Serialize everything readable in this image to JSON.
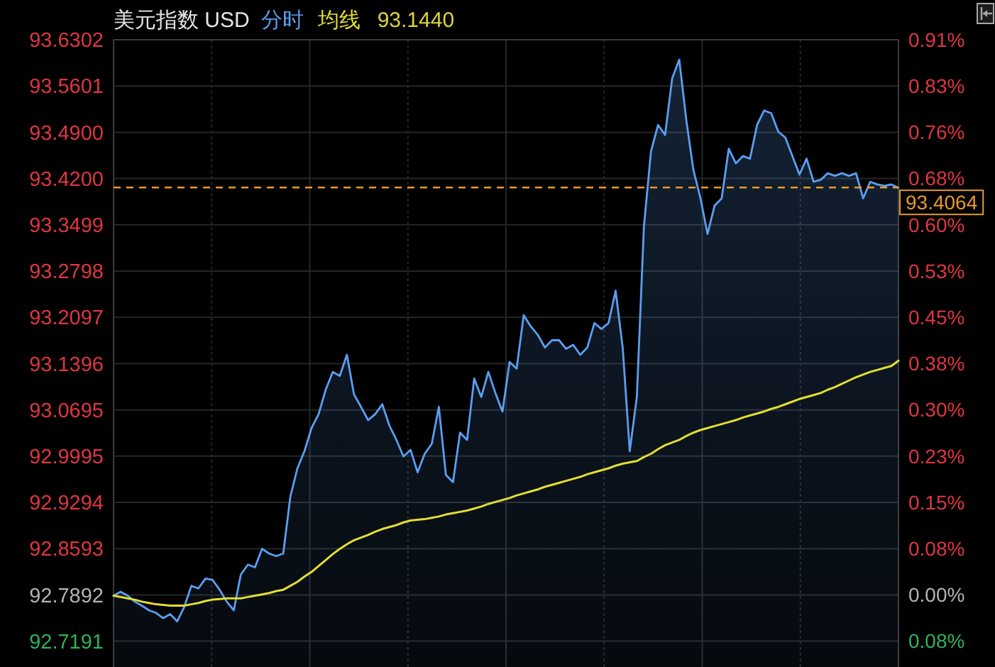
{
  "chart_data": {
    "type": "area",
    "title": "美元指数 USD",
    "categories": [
      null,
      null,
      null,
      null,
      null,
      null,
      null,
      null,
      null,
      null,
      null,
      null,
      null,
      null,
      null,
      null,
      null,
      null,
      null,
      null,
      null,
      null,
      null,
      null,
      null,
      null,
      null,
      null,
      null,
      null,
      null,
      null,
      null,
      null,
      null,
      null,
      null,
      null,
      null,
      null,
      null,
      null,
      null,
      null,
      null,
      null,
      null,
      null,
      null,
      null,
      null,
      null,
      null,
      null,
      null,
      null,
      null,
      null,
      null,
      null,
      null,
      null,
      null,
      null,
      null,
      null,
      null,
      null,
      null,
      null,
      null,
      null,
      null,
      null,
      null,
      null,
      null,
      null,
      null,
      null,
      null,
      null,
      null,
      null,
      null,
      null,
      null,
      null,
      null,
      null,
      null,
      null,
      null,
      null,
      null,
      null,
      null,
      null,
      null,
      null,
      null,
      null,
      null,
      null,
      null,
      null,
      null,
      null,
      null,
      null,
      null,
      null
    ],
    "series": [
      {
        "name": "分时",
        "color": "#5b9ef2",
        "values": [
          92.788,
          92.794,
          92.788,
          92.779,
          92.773,
          92.766,
          92.762,
          92.754,
          92.76,
          92.749,
          92.771,
          92.803,
          92.799,
          92.814,
          92.812,
          92.797,
          92.779,
          92.766,
          92.82,
          92.835,
          92.831,
          92.859,
          92.852,
          92.848,
          92.852,
          92.938,
          92.981,
          93.007,
          93.042,
          93.063,
          93.1,
          93.127,
          93.121,
          93.153,
          93.093,
          93.074,
          93.054,
          93.063,
          93.078,
          93.046,
          93.024,
          92.999,
          93.009,
          92.975,
          93.003,
          93.018,
          93.074,
          92.971,
          92.96,
          93.035,
          93.024,
          93.117,
          93.089,
          93.127,
          93.095,
          93.067,
          93.142,
          93.132,
          93.213,
          93.196,
          93.183,
          93.164,
          93.175,
          93.175,
          93.162,
          93.168,
          93.153,
          93.164,
          93.201,
          93.192,
          93.201,
          93.25,
          93.164,
          93.007,
          93.089,
          93.347,
          93.461,
          93.501,
          93.486,
          93.572,
          93.6,
          93.508,
          93.433,
          93.39,
          93.336,
          93.379,
          93.39,
          93.465,
          93.443,
          93.454,
          93.45,
          93.501,
          93.523,
          93.519,
          93.491,
          93.482,
          93.454,
          93.426,
          93.45,
          93.415,
          93.418,
          93.428,
          93.424,
          93.428,
          93.424,
          93.428,
          93.39,
          93.415,
          93.411,
          93.409,
          93.411,
          93.406
        ]
      },
      {
        "name": "均线",
        "type": "line",
        "color": "#e3de32",
        "values": [
          92.788,
          92.786,
          92.784,
          92.782,
          92.779,
          92.777,
          92.775,
          92.774,
          92.773,
          92.773,
          92.773,
          92.775,
          92.777,
          92.78,
          92.782,
          92.783,
          92.784,
          92.784,
          92.784,
          92.786,
          92.788,
          92.79,
          92.792,
          92.795,
          92.797,
          92.803,
          92.809,
          92.817,
          92.824,
          92.833,
          92.842,
          92.851,
          92.859,
          92.866,
          92.872,
          92.876,
          92.88,
          92.885,
          92.889,
          92.892,
          92.895,
          92.899,
          92.902,
          92.903,
          92.904,
          92.906,
          92.908,
          92.911,
          92.913,
          92.915,
          92.917,
          92.92,
          92.923,
          92.927,
          92.93,
          92.933,
          92.936,
          92.94,
          92.943,
          92.946,
          92.949,
          92.953,
          92.956,
          92.959,
          92.962,
          92.965,
          92.968,
          92.972,
          92.975,
          92.978,
          92.981,
          92.985,
          92.988,
          92.99,
          92.992,
          92.998,
          93.003,
          93.01,
          93.016,
          93.02,
          93.024,
          93.03,
          93.035,
          93.039,
          93.042,
          93.045,
          93.048,
          93.051,
          93.054,
          93.058,
          93.061,
          93.064,
          93.067,
          93.071,
          93.074,
          93.078,
          93.082,
          93.086,
          93.089,
          93.092,
          93.095,
          93.1,
          93.104,
          93.109,
          93.114,
          93.119,
          93.123,
          93.127,
          93.13,
          93.133,
          93.136,
          93.144
        ]
      }
    ],
    "annotations": [
      "93.1440"
    ],
    "ylim": [
      92.68,
      93.6302
    ],
    "yticks": [
      93.6302,
      93.5601,
      {
        "value": 93.49,
        "label": "93.4900"
      },
      {
        "value": 93.42,
        "label": "93.4200"
      },
      93.3499,
      93.2798,
      93.2097,
      93.1396,
      93.0695,
      92.9995,
      92.9294,
      92.8593,
      92.7892,
      92.7191
    ],
    "y2lim": [
      -0.1177,
      0.9064
    ],
    "y2ticks": [
      {
        "value": 0.9064,
        "label": "0.91%"
      },
      {
        "value": 0.8308,
        "label": "0.83%"
      },
      {
        "value": 0.7553,
        "label": "0.76%"
      },
      {
        "value": 0.6798,
        "label": "0.68%"
      },
      {
        "value": 0.6043,
        "label": "0.60%"
      },
      {
        "value": 0.5287,
        "label": "0.53%"
      },
      {
        "value": 0.4532,
        "label": "0.45%"
      },
      {
        "value": 0.3776,
        "label": "0.38%"
      },
      {
        "value": 0.3021,
        "label": "0.30%"
      },
      {
        "value": 0.2266,
        "label": "0.23%"
      },
      {
        "value": 0.1511,
        "label": "0.15%"
      },
      {
        "value": 0.0755,
        "label": "0.08%"
      },
      {
        "value": 0,
        "label": "0.00%"
      },
      {
        "value": -0.0755,
        "label": "0.08%"
      }
    ],
    "ref_lines": [
      {
        "axis": "y",
        "value": 93.4064,
        "label": "93.4064",
        "color": "#e89a2c",
        "line_style": "dashed"
      }
    ],
    "grid": true,
    "legend": "top"
  }
}
